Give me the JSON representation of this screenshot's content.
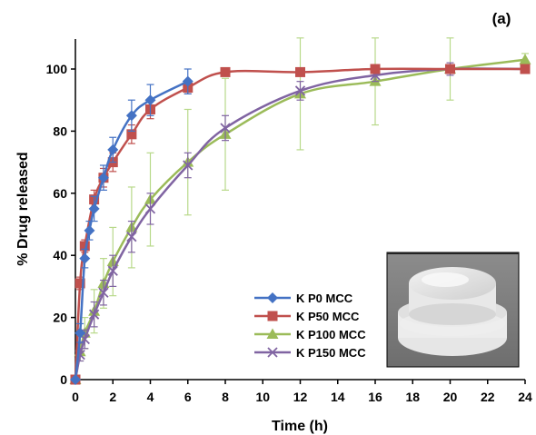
{
  "chart_data": {
    "type": "line",
    "panel_label": "(a)",
    "xlabel": "Time (h)",
    "ylabel": "% Drug released",
    "xlim": [
      0,
      24
    ],
    "ylim": [
      0,
      110
    ],
    "x_ticks": [
      0,
      2,
      4,
      6,
      8,
      10,
      12,
      14,
      16,
      18,
      20,
      22,
      24
    ],
    "y_ticks": [
      0,
      20,
      40,
      60,
      80,
      100
    ],
    "grid": false,
    "legend_position": "bottom-center",
    "inset_image": "photo of stacked tablet",
    "series": [
      {
        "name": "K P0 MCC",
        "color": "#4472c4",
        "marker": "diamond",
        "x": [
          0,
          0.25,
          0.5,
          0.75,
          1,
          1.5,
          2,
          3,
          4,
          6
        ],
        "y": [
          0,
          15,
          39,
          48,
          55,
          65,
          74,
          85,
          90,
          96
        ],
        "err": [
          0,
          3,
          3,
          3,
          4,
          4,
          4,
          5,
          5,
          4
        ]
      },
      {
        "name": "K P50 MCC",
        "color": "#c0504d",
        "marker": "square",
        "x": [
          0,
          0.25,
          0.5,
          1,
          1.5,
          2,
          3,
          4,
          6,
          8,
          12,
          16,
          20,
          24
        ],
        "y": [
          0,
          31,
          43,
          58,
          65,
          70,
          79,
          87,
          94,
          99,
          99,
          100,
          100,
          100
        ],
        "err": [
          0,
          2,
          2,
          3,
          3,
          3,
          3,
          3,
          2,
          1,
          1,
          1,
          1,
          1
        ]
      },
      {
        "name": "K P100 MCC",
        "color": "#9bbb59",
        "marker": "triangle",
        "x": [
          0,
          0.25,
          0.5,
          1,
          1.5,
          2,
          3,
          4,
          6,
          8,
          12,
          16,
          20,
          24
        ],
        "y": [
          0,
          9,
          15,
          22,
          31,
          38,
          49,
          58,
          70,
          79,
          92,
          96,
          100,
          103
        ],
        "err": [
          0,
          3,
          5,
          7,
          8,
          11,
          13,
          15,
          17,
          18,
          18,
          14,
          10,
          2
        ]
      },
      {
        "name": "K P150 MCC",
        "color": "#8064a2",
        "marker": "x",
        "x": [
          0,
          0.25,
          0.5,
          1,
          1.5,
          2,
          3,
          4,
          6,
          8,
          12,
          16,
          20,
          24
        ],
        "y": [
          0,
          8,
          13,
          21,
          28,
          35,
          46,
          55,
          69,
          81,
          93,
          98,
          100,
          100
        ],
        "err": [
          0,
          2,
          3,
          4,
          4,
          5,
          5,
          5,
          4,
          4,
          3,
          2,
          2,
          1
        ]
      }
    ]
  }
}
